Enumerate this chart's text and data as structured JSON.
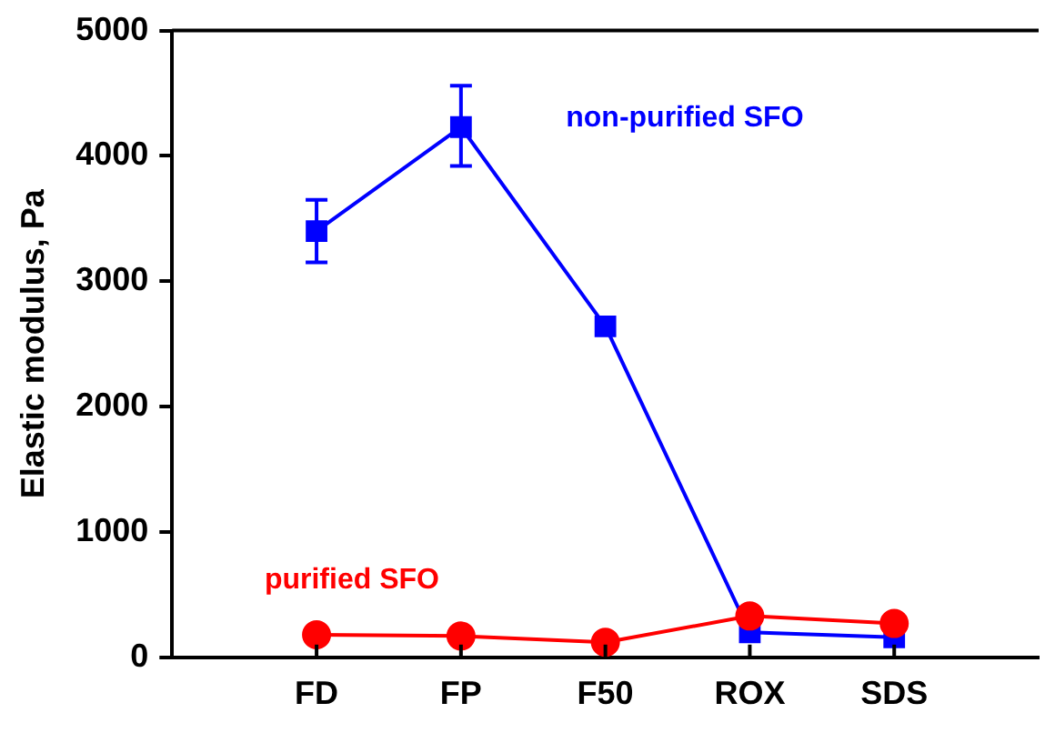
{
  "chart_data": {
    "type": "line",
    "ylabel": "Elastic modulus, Pa",
    "categories": [
      "FD",
      "FP",
      "F50",
      "ROX",
      "SDS"
    ],
    "ylim": [
      0,
      5000
    ],
    "yticks": [
      0,
      1000,
      2000,
      3000,
      4000,
      5000
    ],
    "grid": false,
    "legend": false,
    "series": [
      {
        "name": "non-purified SFO",
        "color": "#0000ff",
        "marker": "square",
        "values": [
          3400,
          4230,
          2640,
          200,
          160
        ],
        "errors": [
          [
            3150,
            3650
          ],
          [
            3920,
            4560
          ],
          null,
          null,
          null
        ]
      },
      {
        "name": "purified SFO",
        "color": "#ff0000",
        "marker": "circle",
        "values": [
          180,
          170,
          120,
          330,
          270
        ]
      }
    ]
  }
}
